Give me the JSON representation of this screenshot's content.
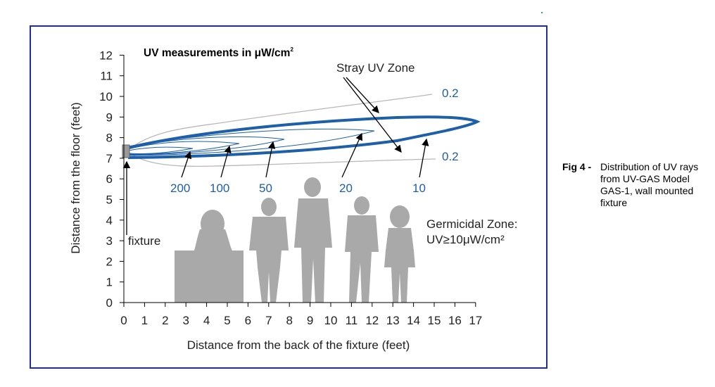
{
  "colors": {
    "frame": "#1f2f8f",
    "contour": "#1d5fa8",
    "stray": "#b8b8b8",
    "silhouette": "#a9a9a9",
    "fixture": "#999999"
  },
  "figure": {
    "title": "UV measurements in μW/cm",
    "title_sup": "2",
    "xlabel": "Distance from the back of the fixture (feet)",
    "ylabel": "Distance from the floor (feet)",
    "x_ticks": [
      "0",
      "1",
      "2",
      "3",
      "4",
      "5",
      "6",
      "7",
      "8",
      "9",
      "10",
      "11",
      "12",
      "13",
      "14",
      "15",
      "16",
      "17"
    ],
    "y_ticks": [
      "0",
      "1",
      "2",
      "3",
      "4",
      "5",
      "6",
      "7",
      "8",
      "9",
      "10",
      "11",
      "12"
    ],
    "stray_label": "Stray UV Zone",
    "stray_values": [
      "0.2",
      "0.2"
    ],
    "contour_values": [
      "200",
      "100",
      "50",
      "20",
      "10"
    ],
    "fixture_label": "fixture",
    "germicidal_label_1": "Germicidal Zone:",
    "germicidal_label_2": "UV≥10μW/cm²"
  },
  "chart_data": {
    "type": "contour",
    "xlim": [
      0,
      17
    ],
    "ylim": [
      0,
      12
    ],
    "fixture_height_ft": 7.5,
    "contours": [
      {
        "value": 200,
        "reach_ft": 3.0
      },
      {
        "value": 100,
        "reach_ft": 5.5
      },
      {
        "value": 50,
        "reach_ft": 7.7
      },
      {
        "value": 20,
        "reach_ft": 12.0
      },
      {
        "value": 10,
        "reach_ft": 17.0
      }
    ],
    "stray_zone_value": 0.2
  },
  "caption": {
    "label": "Fig 4 -",
    "text": "Distribution of UV rays from UV-GAS Model GAS-1, wall mounted fixture"
  }
}
